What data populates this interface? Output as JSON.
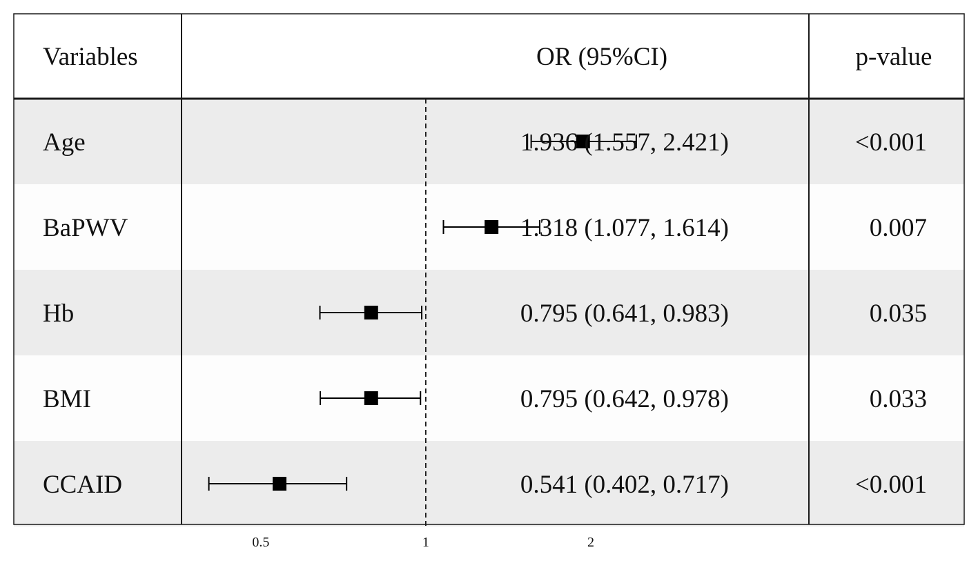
{
  "header": {
    "variables": "Variables",
    "or_ci": "OR (95%CI)",
    "p_value": "p-value"
  },
  "chart_data": {
    "type": "forest",
    "scale": "log",
    "reference_line": 1,
    "xlim": [
      0.3584,
      5
    ],
    "x_ticks": [
      {
        "value": 0.5,
        "label": "0.5"
      },
      {
        "value": 1,
        "label": "1"
      },
      {
        "value": 2,
        "label": "2"
      }
    ],
    "rows": [
      {
        "variable": "Age",
        "or": 1.936,
        "lower": 1.557,
        "upper": 2.421,
        "or_text": "1.936 (1.557, 2.421)",
        "p_text": "<0.001"
      },
      {
        "variable": "BaPWV",
        "or": 1.318,
        "lower": 1.077,
        "upper": 1.614,
        "or_text": "1.318 (1.077, 1.614)",
        "p_text": "0.007"
      },
      {
        "variable": "Hb",
        "or": 0.795,
        "lower": 0.641,
        "upper": 0.983,
        "or_text": "0.795 (0.641, 0.983)",
        "p_text": "0.035"
      },
      {
        "variable": "BMI",
        "or": 0.795,
        "lower": 0.642,
        "upper": 0.978,
        "or_text": "0.795 (0.642, 0.978)",
        "p_text": "0.033"
      },
      {
        "variable": "CCAID",
        "or": 0.541,
        "lower": 0.402,
        "upper": 0.717,
        "or_text": "0.541 (0.402, 0.717)",
        "p_text": "<0.001"
      }
    ],
    "colors": {
      "stripe": "#ececec",
      "row": "#fdfdfd",
      "mark": "#000000",
      "border": "#1a1a1a"
    }
  }
}
